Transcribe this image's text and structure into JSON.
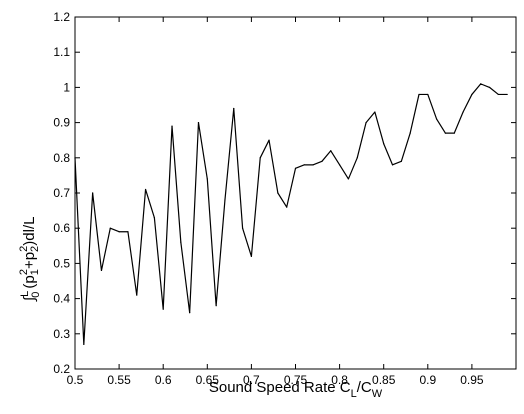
{
  "chart_data": {
    "type": "line",
    "title": "",
    "xlabel": {
      "main": "Sound Speed Rate C",
      "sub1": "L",
      "mid": "/C",
      "sub2": "W"
    },
    "ylabel": {
      "integral": "∫",
      "lower": "0",
      "upper": "L",
      "open": "(p",
      "p1sub": "1",
      "sq1": "2",
      "plus": "+p",
      "p2sub": "2",
      "sq2": "2",
      "close": ")dl/L"
    },
    "xlim": [
      0.5,
      1.0
    ],
    "ylim": [
      0.2,
      1.2
    ],
    "xticks": [
      "0.5",
      "0.55",
      "0.6",
      "0.65",
      "0.7",
      "0.75",
      "0.8",
      "0.85",
      "0.9",
      "0.95"
    ],
    "yticks": [
      "0.2",
      "0.3",
      "0.4",
      "0.5",
      "0.6",
      "0.7",
      "0.8",
      "0.9",
      "1",
      "1.1",
      "1.2"
    ],
    "grid": false,
    "line_color": "#000000",
    "series": [
      {
        "x": [
          0.5,
          0.51,
          0.52,
          0.53,
          0.54,
          0.55,
          0.56,
          0.57,
          0.58,
          0.59,
          0.6,
          0.61,
          0.62,
          0.63,
          0.64,
          0.65,
          0.66,
          0.67,
          0.68,
          0.69,
          0.7,
          0.71,
          0.72,
          0.73,
          0.74,
          0.75,
          0.76,
          0.77,
          0.78,
          0.79,
          0.8,
          0.81,
          0.82,
          0.83,
          0.84,
          0.85,
          0.86,
          0.87,
          0.88,
          0.89,
          0.9,
          0.91,
          0.92,
          0.93,
          0.94,
          0.95,
          0.96,
          0.97,
          0.98,
          0.99
        ],
        "y": [
          0.8,
          0.27,
          0.7,
          0.48,
          0.6,
          0.59,
          0.59,
          0.41,
          0.71,
          0.63,
          0.37,
          0.89,
          0.56,
          0.36,
          0.9,
          0.74,
          0.38,
          0.68,
          0.94,
          0.6,
          0.52,
          0.8,
          0.85,
          0.7,
          0.66,
          0.77,
          0.78,
          0.78,
          0.79,
          0.82,
          0.78,
          0.74,
          0.8,
          0.9,
          0.93,
          0.84,
          0.78,
          0.79,
          0.87,
          0.98,
          0.98,
          0.91,
          0.87,
          0.87,
          0.93,
          0.98,
          1.01,
          1.0,
          0.98,
          0.98
        ]
      }
    ]
  }
}
